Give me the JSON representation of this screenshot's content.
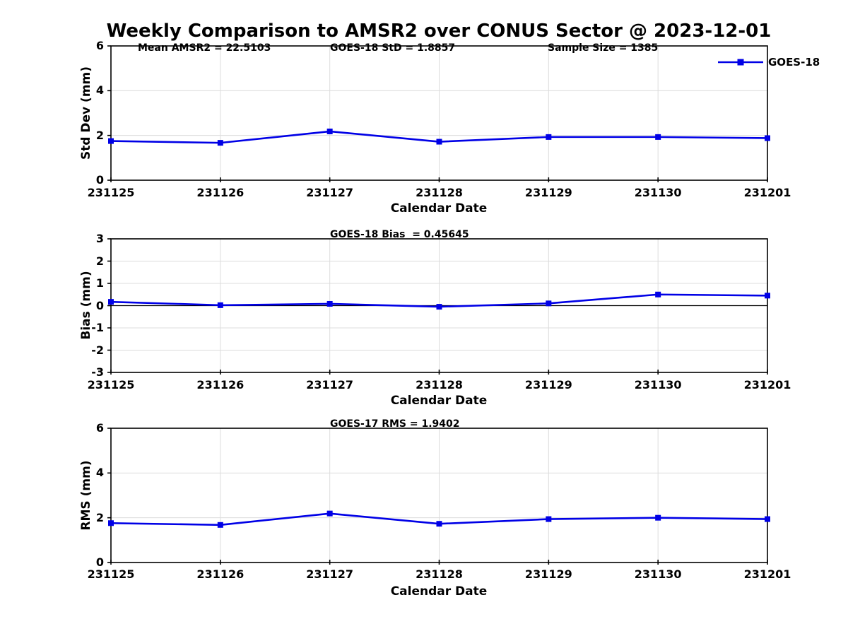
{
  "title": "Weekly Comparison to AMSR2 over CONUS Sector @ 2023-12-01",
  "legend": {
    "label": "GOES-18"
  },
  "colors": {
    "line": "#0000E6",
    "marker": "#0000E6",
    "grid": "#dcdcdc",
    "axis": "#000000",
    "zero_line": "#000000",
    "text": "#000000",
    "background": "#ffffff"
  },
  "chart_data": [
    {
      "type": "line",
      "title": "",
      "annotations": [
        "Mean AMSR2 = 22.5103",
        "GOES-18 StD = 1.8857",
        "Sample Size = 1385"
      ],
      "ylabel": "Std Dev (mm)",
      "xlabel": "Calendar Date",
      "categories": [
        "231125",
        "231126",
        "231127",
        "231128",
        "231129",
        "231130",
        "231201"
      ],
      "series": [
        {
          "name": "GOES-18",
          "values": [
            1.75,
            1.67,
            2.18,
            1.72,
            1.93,
            1.93,
            1.88
          ]
        }
      ],
      "ylim": [
        0,
        6
      ],
      "yticks": [
        0,
        2,
        4,
        6
      ],
      "grid": true,
      "zero_line": false,
      "legend_position": "top-right"
    },
    {
      "type": "line",
      "title": "GOES-18 Bias  = 0.45645",
      "ylabel": "Bias (mm)",
      "xlabel": "Calendar Date",
      "categories": [
        "231125",
        "231126",
        "231127",
        "231128",
        "231129",
        "231130",
        "231201"
      ],
      "series": [
        {
          "name": "GOES-18",
          "values": [
            0.17,
            0.02,
            0.08,
            -0.05,
            0.1,
            0.5,
            0.45
          ]
        }
      ],
      "ylim": [
        -3,
        3
      ],
      "yticks": [
        -3,
        -2,
        -1,
        0,
        1,
        2,
        3
      ],
      "grid": true,
      "zero_line": true
    },
    {
      "type": "line",
      "title": "GOES-17 RMS = 1.9402",
      "ylabel": "RMS (mm)",
      "xlabel": "Calendar Date",
      "categories": [
        "231125",
        "231126",
        "231127",
        "231128",
        "231129",
        "231130",
        "231201"
      ],
      "series": [
        {
          "name": "GOES-18",
          "values": [
            1.76,
            1.68,
            2.19,
            1.73,
            1.94,
            2.0,
            1.94
          ]
        }
      ],
      "ylim": [
        0,
        6
      ],
      "yticks": [
        0,
        2,
        4,
        6
      ],
      "grid": true,
      "zero_line": false
    }
  ]
}
